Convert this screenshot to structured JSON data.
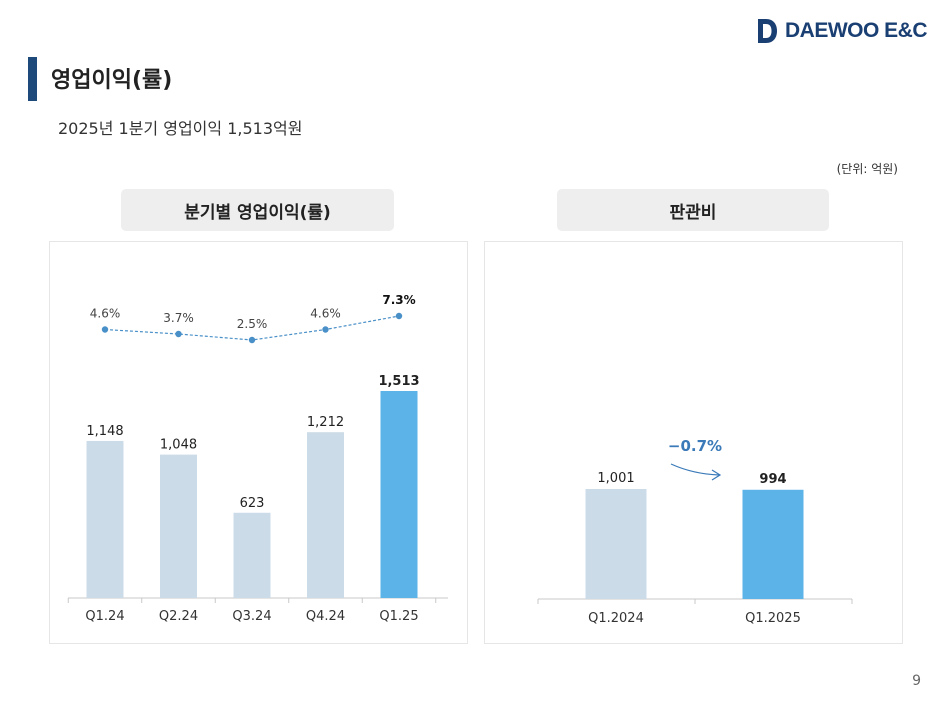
{
  "header": {
    "logo_text": "DAEWOO E&C",
    "title": "영업이익(률)",
    "subtitle": "2025년 1분기 영업이익 1,513억원",
    "unit": "(단위: 억원)"
  },
  "colors": {
    "accent_bar": "#1d4a7a",
    "bar_past": "#ccdbe8",
    "bar_current": "#5cb3e8",
    "line": "#4a90c8",
    "arrow": "#3a7ab8"
  },
  "chart_data": [
    {
      "type": "bar",
      "title": "분기별 영업이익(률)",
      "categories": [
        "Q1.24",
        "Q2.24",
        "Q3.24",
        "Q4.24",
        "Q1.25"
      ],
      "series": [
        {
          "type": "bar",
          "values": [
            1148,
            1048,
            623,
            1212,
            1513
          ],
          "labels": [
            "1,148",
            "1,048",
            "623",
            "1,212",
            "1,513"
          ],
          "highlight_index": 4
        },
        {
          "type": "line",
          "values": [
            4.6,
            3.7,
            2.5,
            4.6,
            7.3
          ],
          "labels": [
            "4.6%",
            "3.7%",
            "2.5%",
            "4.6%",
            "7.3%"
          ],
          "style": "dashed",
          "highlight_index": 4
        }
      ],
      "ylim": [
        0,
        1513
      ],
      "grid": false
    },
    {
      "type": "bar",
      "title": "판관비",
      "categories": [
        "Q1.2024",
        "Q1.2025"
      ],
      "values": [
        1001,
        994
      ],
      "labels": [
        "1,001",
        "994"
      ],
      "highlight_index": 1,
      "annotation": "−0.7%",
      "ylim": [
        0,
        1001
      ],
      "grid": false
    }
  ],
  "footer": {
    "page_number": "9"
  }
}
